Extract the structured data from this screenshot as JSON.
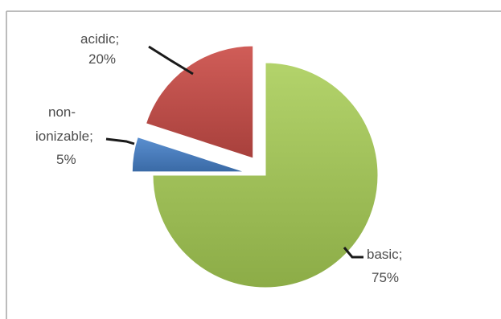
{
  "chart_data": {
    "type": "pie",
    "title": "",
    "slices": [
      {
        "label": "basic",
        "value": 75,
        "value_label": "75%",
        "color": "#9bbb59",
        "exploded": false
      },
      {
        "label": "non-ionizable",
        "value": 5,
        "value_label": "5%",
        "color": "#4f81bd",
        "exploded": true
      },
      {
        "label": "acidic",
        "value": 20,
        "value_label": "20%",
        "color": "#c0504d",
        "exploded": true
      }
    ],
    "legend": "none",
    "data_labels": "outside-with-leader-lines"
  }
}
